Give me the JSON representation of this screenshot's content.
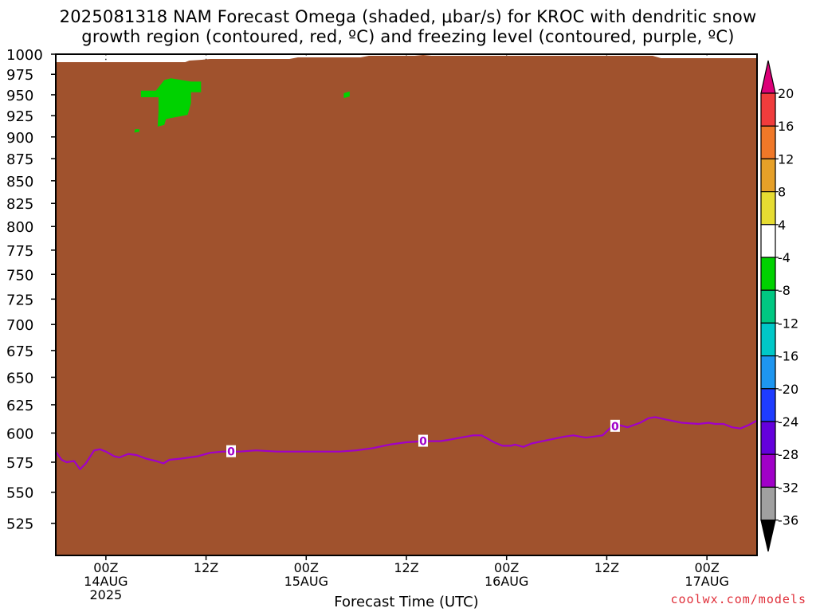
{
  "title": {
    "line1": "2025081318 NAM Forecast Omega (shaded, μbar/s) for KROC with dendritic snow",
    "line2": "growth region (contoured, red, ºC) and freezing level (contoured, purple, ºC)"
  },
  "credit": "coolwx.com/models",
  "chart_data": {
    "type": "area",
    "xlabel": "Forecast Time (UTC)",
    "ylabel": "",
    "x_unit": "hours since 2025-08-13 18Z",
    "xlim": [
      0,
      84
    ],
    "ylim": [
      1000,
      500
    ],
    "y_ticks": [
      525,
      550,
      575,
      600,
      625,
      650,
      675,
      700,
      725,
      750,
      775,
      800,
      825,
      850,
      875,
      900,
      925,
      950,
      975,
      1000
    ],
    "x_ticks": [
      {
        "x": 6,
        "lines": [
          "00Z",
          "14AUG",
          "2025"
        ]
      },
      {
        "x": 18,
        "lines": [
          "12Z"
        ]
      },
      {
        "x": 30,
        "lines": [
          "00Z",
          "15AUG"
        ]
      },
      {
        "x": 42,
        "lines": [
          "12Z"
        ]
      },
      {
        "x": 54,
        "lines": [
          "00Z",
          "16AUG"
        ]
      },
      {
        "x": 66,
        "lines": [
          "12Z"
        ]
      },
      {
        "x": 78,
        "lines": [
          "00Z",
          "17AUG"
        ]
      }
    ],
    "grid": true,
    "freezing_level": {
      "label": "0",
      "color": "#a000c8",
      "label_at_x": [
        21,
        44,
        67
      ],
      "points": [
        [
          0,
          584
        ],
        [
          0.7,
          577
        ],
        [
          1.3,
          575
        ],
        [
          2.2,
          576
        ],
        [
          2.9,
          569
        ],
        [
          3.6,
          574
        ],
        [
          4.6,
          585
        ],
        [
          5.3,
          586
        ],
        [
          6.0,
          584
        ],
        [
          7.0,
          580
        ],
        [
          7.6,
          579
        ],
        [
          8.7,
          582
        ],
        [
          9.7,
          581
        ],
        [
          10.8,
          578
        ],
        [
          12.0,
          576
        ],
        [
          12.9,
          574
        ],
        [
          13.6,
          577
        ],
        [
          15.0,
          578
        ],
        [
          17.0,
          580
        ],
        [
          18.5,
          583
        ],
        [
          20.0,
          584
        ],
        [
          22.0,
          584
        ],
        [
          24.0,
          585
        ],
        [
          26.5,
          584
        ],
        [
          28.5,
          584
        ],
        [
          31.0,
          584
        ],
        [
          34.0,
          584
        ],
        [
          36.0,
          585
        ],
        [
          38.0,
          587
        ],
        [
          40.0,
          590
        ],
        [
          42.0,
          592
        ],
        [
          44.0,
          593
        ],
        [
          46.0,
          593
        ],
        [
          47.0,
          594
        ],
        [
          48.5,
          596
        ],
        [
          50.0,
          598
        ],
        [
          51.0,
          598
        ],
        [
          52.5,
          592
        ],
        [
          53.5,
          589
        ],
        [
          54.5,
          589
        ],
        [
          55.0,
          590
        ],
        [
          56.0,
          588
        ],
        [
          57.0,
          591
        ],
        [
          59.0,
          594
        ],
        [
          61.0,
          597
        ],
        [
          62.0,
          598
        ],
        [
          63.5,
          596
        ],
        [
          64.5,
          597
        ],
        [
          65.5,
          598
        ],
        [
          66.5,
          605
        ],
        [
          67.5,
          607
        ],
        [
          68.5,
          605
        ],
        [
          70.0,
          609
        ],
        [
          71.0,
          613
        ],
        [
          71.8,
          614
        ],
        [
          73.0,
          612
        ],
        [
          75.0,
          609
        ],
        [
          77.0,
          608
        ],
        [
          78.2,
          609
        ],
        [
          79.0,
          608
        ],
        [
          80.0,
          608
        ],
        [
          81.0,
          605
        ],
        [
          82.0,
          604
        ],
        [
          83.0,
          607
        ],
        [
          84.0,
          611
        ]
      ]
    },
    "omega_shading": {
      "color": "#00d200",
      "range": [
        -8,
        -4
      ],
      "regions": [
        [
          [
            9.4,
            905
          ],
          [
            10.0,
            906
          ],
          [
            10.0,
            909
          ],
          [
            9.5,
            909
          ]
        ],
        [
          [
            12.2,
            912
          ],
          [
            13.0,
            914
          ],
          [
            13.2,
            921
          ],
          [
            15.8,
            926
          ],
          [
            16.2,
            940
          ],
          [
            16.2,
            953
          ],
          [
            17.4,
            953
          ],
          [
            17.4,
            966
          ],
          [
            16.2,
            966
          ],
          [
            13.8,
            970
          ],
          [
            13.0,
            968
          ],
          [
            12.0,
            955
          ],
          [
            10.2,
            955
          ],
          [
            10.2,
            947
          ],
          [
            12.3,
            947
          ],
          [
            12.3,
            930
          ]
        ],
        [
          [
            34.5,
            946
          ],
          [
            35.2,
            948
          ],
          [
            35.2,
            954
          ],
          [
            34.5,
            952
          ]
        ]
      ]
    },
    "terrain": {
      "color": "#a0522d",
      "points": [
        [
          0,
          990
        ],
        [
          15.5,
          990
        ],
        [
          16.0,
          992
        ],
        [
          17.5,
          993
        ],
        [
          18.5,
          994
        ],
        [
          28.0,
          994
        ],
        [
          29.0,
          996
        ],
        [
          36.5,
          996
        ],
        [
          37.5,
          998
        ],
        [
          43.0,
          998
        ],
        [
          44.0,
          999
        ],
        [
          45.0,
          998
        ],
        [
          71.5,
          998
        ],
        [
          72.5,
          995
        ],
        [
          84.0,
          995
        ]
      ]
    },
    "colorbar": {
      "labels": [
        "20",
        "16",
        "12",
        "8",
        "4",
        "-4",
        "-8",
        "-12",
        "-16",
        "-20",
        "-24",
        "-28",
        "-32",
        "-36"
      ],
      "colors": [
        "#dc0078",
        "#f03c3c",
        "#f07828",
        "#e6a028",
        "#e6dc32",
        "#ffffff",
        "#00d200",
        "#00c882",
        "#00c8c8",
        "#1e96f0",
        "#1e3cff",
        "#6400dc",
        "#a000c8",
        "#a0a0a0",
        "#000000"
      ]
    }
  }
}
